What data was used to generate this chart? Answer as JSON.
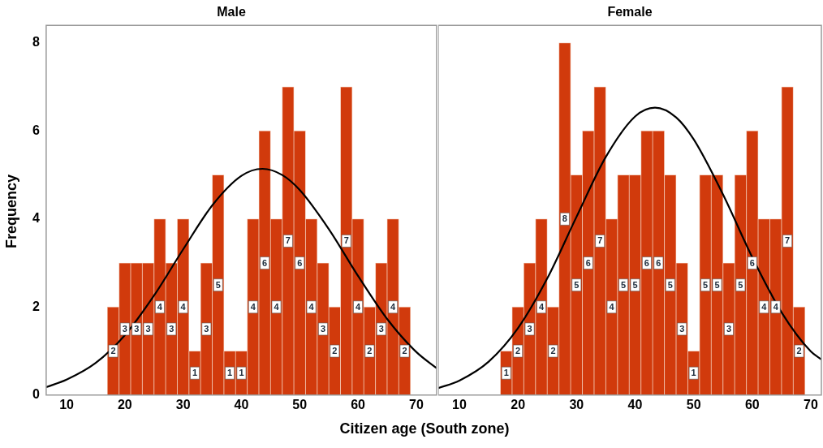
{
  "chart_data": [
    {
      "type": "histogram",
      "title": "Male",
      "ylabel": "Frequency",
      "xlabel": "Citizen age (South zone)",
      "xlim": [
        6.5,
        73.5
      ],
      "xticks": [
        10,
        20,
        30,
        40,
        50,
        60,
        70
      ],
      "ylim": [
        0,
        8.4
      ],
      "yticks": [
        0,
        2,
        4,
        6,
        8
      ],
      "series": [
        {
          "color": "#d13a0c",
          "bins": [
            17,
            19,
            21,
            23,
            25,
            27,
            29,
            31,
            33,
            35,
            37,
            39,
            41,
            43,
            45,
            47,
            49,
            51,
            53,
            55,
            57,
            59,
            61,
            63,
            65,
            67,
            69
          ],
          "values": [
            2,
            3,
            3,
            3,
            4,
            3,
            4,
            1,
            3,
            5,
            1,
            1,
            4,
            6,
            4,
            7,
            6,
            4,
            3,
            2,
            7,
            4,
            2,
            3,
            4,
            2
          ],
          "value_labels": [
            "2",
            "3",
            "3",
            "3",
            "4",
            "3",
            "4",
            "1",
            "3",
            "5",
            "1",
            "1",
            "4",
            "6",
            "4",
            "7",
            "6",
            "4",
            "3",
            "2",
            "7",
            "4",
            "2",
            "3",
            "4",
            "2"
          ]
        },
        {
          "type": "line",
          "color": "#000000",
          "x": [
            6.5,
            10,
            15,
            20,
            25,
            30,
            35,
            40,
            43.6,
            47,
            50,
            55,
            60,
            65,
            70,
            73.5
          ],
          "values": [
            0.18,
            0.35,
            0.73,
            1.36,
            2.26,
            3.31,
            4.31,
            4.98,
            5.14,
            5.0,
            4.66,
            3.77,
            2.71,
            1.73,
            0.98,
            0.61
          ]
        }
      ]
    },
    {
      "type": "histogram",
      "title": "Female",
      "xlim": [
        6.4,
        71.8
      ],
      "xticks": [
        10,
        20,
        30,
        40,
        50,
        60,
        70
      ],
      "ylim": [
        0,
        8.4
      ],
      "yticks": [
        0,
        2,
        4,
        6,
        8
      ],
      "tick_labels": "x",
      "series": [
        {
          "color": "#d13a0c",
          "bins": [
            17,
            19,
            21,
            23,
            25,
            27,
            29,
            31,
            33,
            35,
            37,
            39,
            41,
            43,
            45,
            47,
            49,
            51,
            53,
            55,
            57,
            59,
            61,
            63,
            65,
            67,
            69
          ],
          "values": [
            1,
            2,
            3,
            4,
            2,
            8,
            5,
            6,
            7,
            4,
            5,
            5,
            6,
            6,
            5,
            3,
            1,
            5,
            5,
            3,
            5,
            6,
            4,
            4,
            7,
            2
          ],
          "value_labels": [
            "1",
            "2",
            "3",
            "4",
            "2",
            "8",
            "5",
            "6",
            "7",
            "4",
            "5",
            "5",
            "6",
            "6",
            "5",
            "3",
            "1",
            "5",
            "5",
            "3",
            "5",
            "6",
            "4",
            "4",
            "7",
            "2"
          ]
        },
        {
          "type": "line",
          "color": "#000000",
          "x": [
            6.4,
            10,
            15,
            20,
            25,
            30,
            35,
            40,
            43.4,
            47,
            50,
            55,
            60,
            65,
            70,
            71.8
          ],
          "values": [
            0.16,
            0.33,
            0.76,
            1.52,
            2.65,
            4.05,
            5.41,
            6.33,
            6.53,
            6.31,
            5.81,
            4.56,
            3.13,
            1.88,
            0.99,
            0.81
          ]
        }
      ]
    }
  ]
}
